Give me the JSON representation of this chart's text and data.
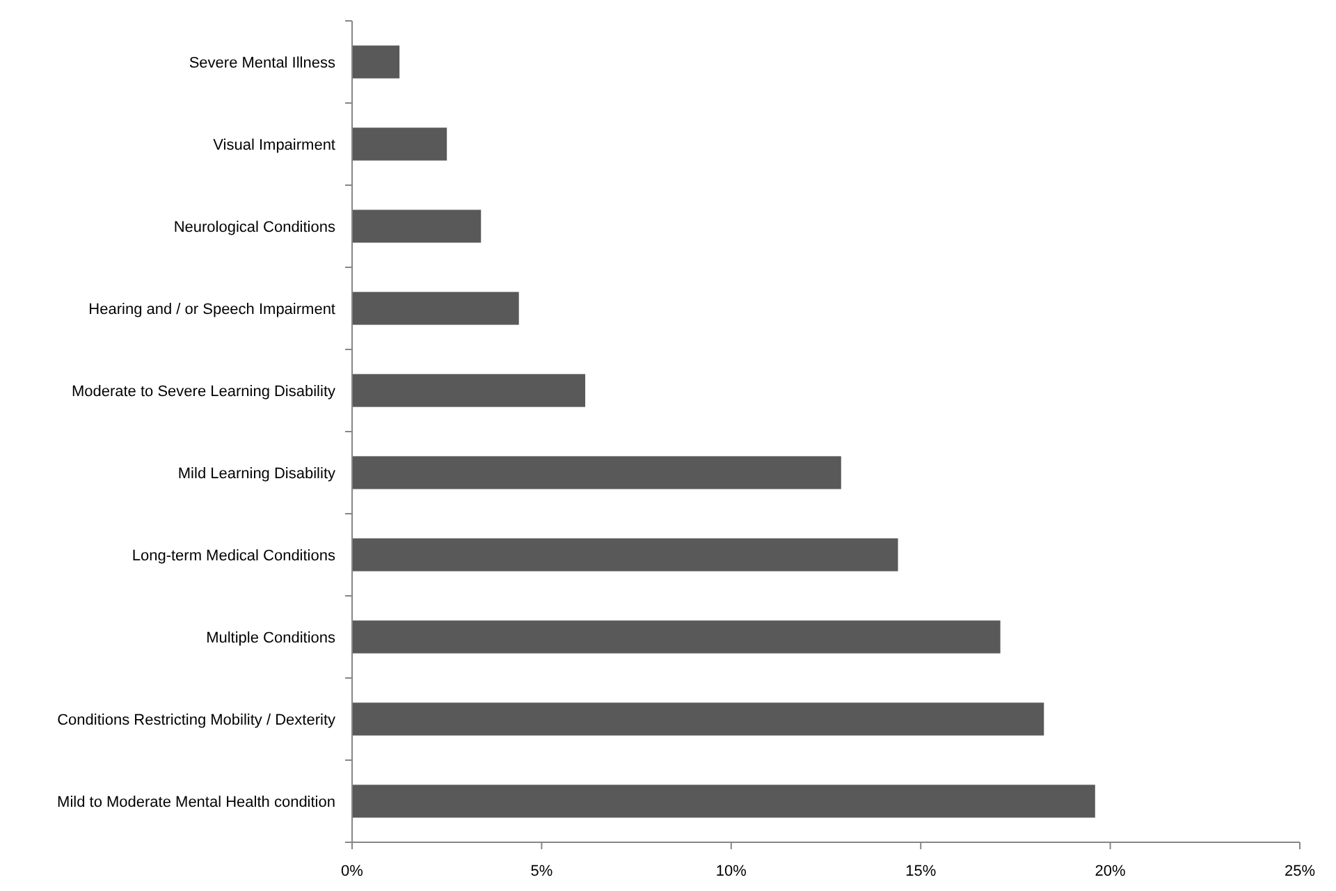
{
  "chart_data": {
    "type": "bar",
    "orientation": "horizontal",
    "categories": [
      "Severe Mental Illness",
      "Visual Impairment",
      "Neurological Conditions",
      "Hearing and / or Speech Impairment",
      "Moderate to Severe Learning Disability",
      "Mild Learning Disability",
      "Long-term Medical Conditions",
      "Multiple Conditions",
      "Conditions Restricting Mobility / Dexterity",
      "Mild to Moderate Mental Health condition"
    ],
    "values": [
      1.25,
      2.5,
      3.4,
      4.4,
      6.15,
      12.9,
      14.4,
      17.1,
      18.25,
      19.6
    ],
    "color": "#595959",
    "xlim": [
      0,
      25
    ],
    "xticks": [
      {
        "value": 0,
        "label": "0%"
      },
      {
        "value": 5,
        "label": "5%"
      },
      {
        "value": 10,
        "label": "10%"
      },
      {
        "value": 15,
        "label": "15%"
      },
      {
        "value": 20,
        "label": "20%"
      },
      {
        "value": 25,
        "label": "25%"
      }
    ],
    "grid": false
  }
}
